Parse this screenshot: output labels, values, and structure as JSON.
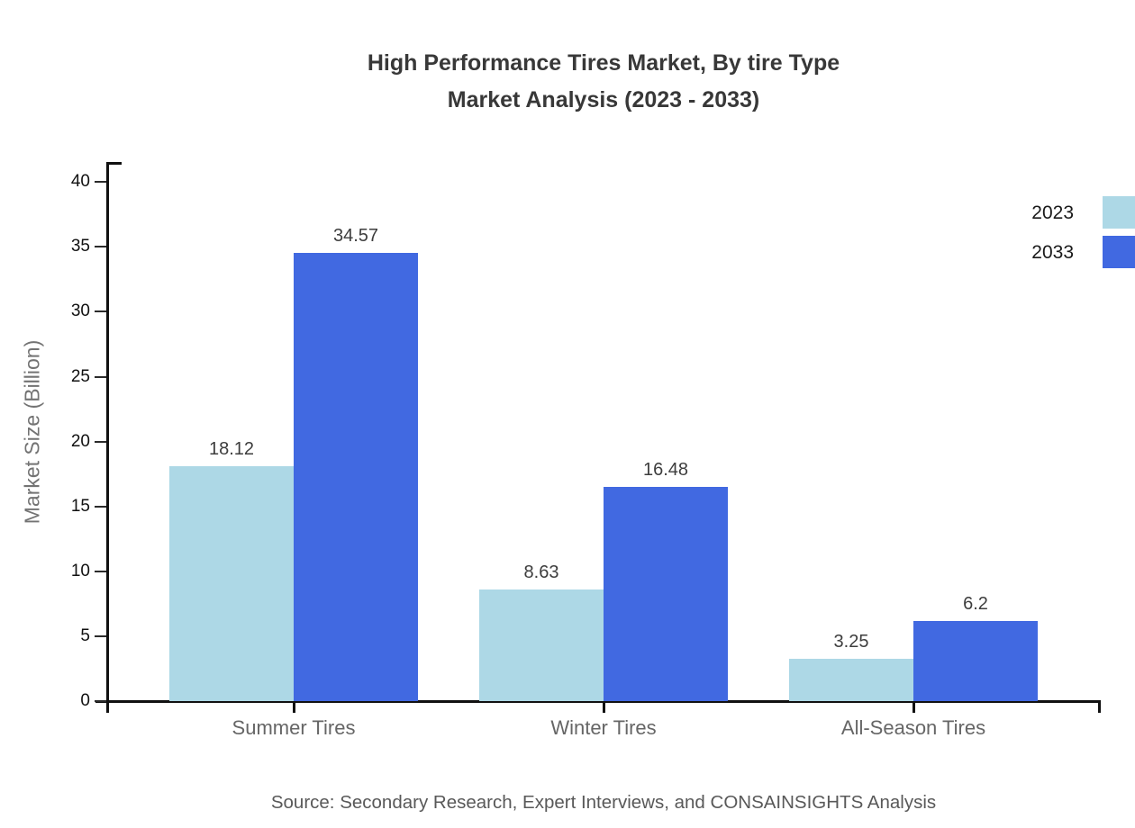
{
  "title": {
    "line1": "High Performance Tires Market, By tire Type",
    "line2": "Market Analysis (2023 - 2033)"
  },
  "chart_data": {
    "type": "bar",
    "categories": [
      "Summer Tires",
      "Winter Tires",
      "All-Season Tires"
    ],
    "series": [
      {
        "name": "2023",
        "color": "#ADD8E6",
        "values": [
          18.12,
          8.63,
          3.25
        ]
      },
      {
        "name": "2033",
        "color": "#4169E1",
        "values": [
          34.57,
          16.48,
          6.2
        ]
      }
    ],
    "value_labels": [
      "18.12",
      "34.57",
      "8.63",
      "16.48",
      "3.25",
      "6.2"
    ],
    "ylabel": "Market Size (Billion)",
    "xlabel": "",
    "ylim": [
      0,
      40
    ],
    "yticks": [
      0,
      5,
      10,
      15,
      20,
      25,
      30,
      35,
      40
    ],
    "grid": false,
    "legend_position": "top-right",
    "bar_value_labels_visible": true
  },
  "legend": {
    "items": [
      {
        "label": "2023",
        "color": "#ADD8E6"
      },
      {
        "label": "2033",
        "color": "#4169E1"
      }
    ]
  },
  "source": "Source: Secondary Research, Expert Interviews, and CONSAINSIGHTS Analysis",
  "colors": {
    "series_2023": "#ADD8E6",
    "series_2033": "#4169E1",
    "axis": "#111111",
    "title_text": "#383838",
    "tick_label": "#111111",
    "category_label": "#666666",
    "axis_title": "#737373",
    "value_label": "#3d3d3d",
    "source_text": "#595959",
    "background": "#ffffff"
  }
}
